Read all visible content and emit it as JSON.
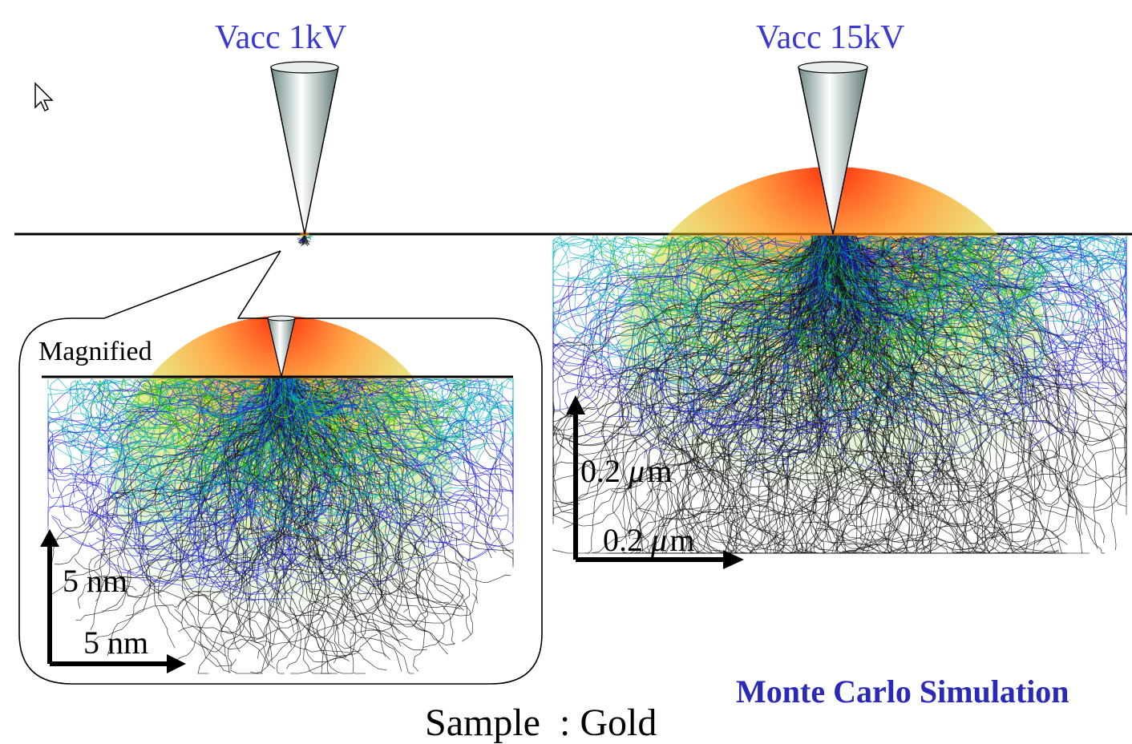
{
  "beams": {
    "low": {
      "label": "Vacc 1kV"
    },
    "high": {
      "label": "Vacc 15kV"
    }
  },
  "inset": {
    "label": "Magnified"
  },
  "scales": {
    "inset_vertical": "5 nm",
    "inset_horizontal": "5 nm",
    "main_vertical_value": "0.2",
    "main_vertical_unit_mu": "μ",
    "main_vertical_unit_m": "m",
    "main_horizontal_value": "0.2",
    "main_horizontal_unit_mu": "μ",
    "main_horizontal_unit_m": "m"
  },
  "footer": {
    "sample": "Sample  : Gold",
    "simulation": "Monte Carlo Simulation"
  },
  "colors": {
    "beam_label": "#3a3ad0",
    "simulation_label": "#2a2ab8",
    "trajectory_core": "#ff2000",
    "trajectory_mid": "#f0d000",
    "trajectory_green": "#20c000",
    "trajectory_cyan": "#00b0c0",
    "trajectory_blue": "#2020e0",
    "trajectory_black": "#101010"
  },
  "icons": {
    "cursor": "mouse-pointer-icon"
  }
}
